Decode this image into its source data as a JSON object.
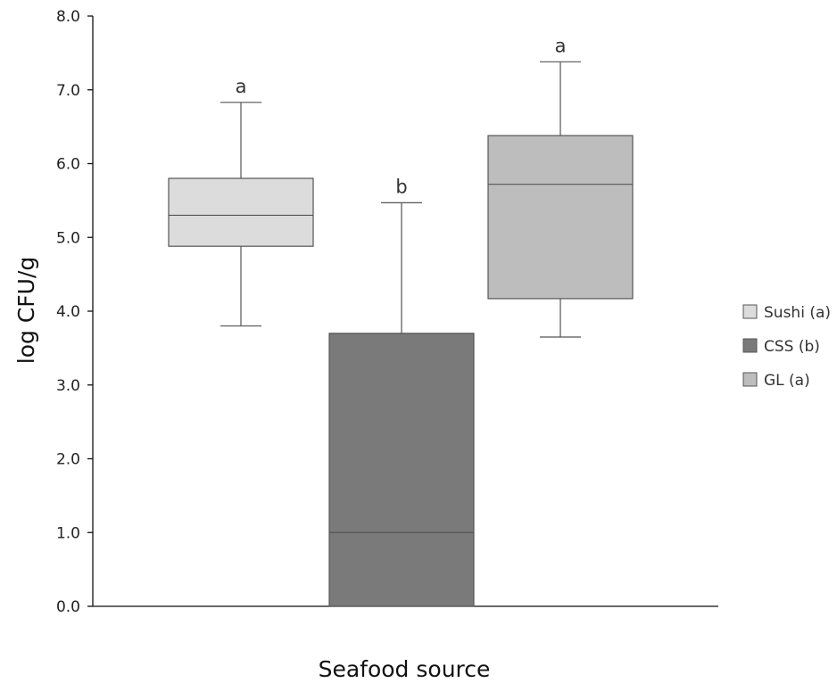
{
  "chart_data": {
    "type": "box",
    "xlabel": "Seafood source",
    "ylabel": "log CFU/g",
    "ylim": [
      0,
      8
    ],
    "yticks": [
      "0.0",
      "1.0",
      "2.0",
      "3.0",
      "4.0",
      "5.0",
      "6.0",
      "7.0",
      "8.0"
    ],
    "grid": false,
    "legend_position": "right",
    "series": [
      {
        "name": "Sushi (a)",
        "annotation": "a",
        "min": 3.8,
        "q1": 4.88,
        "median": 5.3,
        "q3": 5.8,
        "max": 6.83,
        "color": "#dcdcdc"
      },
      {
        "name": "CSS (b)",
        "annotation": "b",
        "min": 0.0,
        "q1": 0.0,
        "median": 1.0,
        "q3": 3.7,
        "max": 5.47,
        "color": "#7a7a7a"
      },
      {
        "name": "GL (a)",
        "annotation": "a",
        "min": 3.65,
        "q1": 4.17,
        "median": 5.72,
        "q3": 6.38,
        "max": 7.38,
        "color": "#bdbdbd"
      }
    ]
  }
}
